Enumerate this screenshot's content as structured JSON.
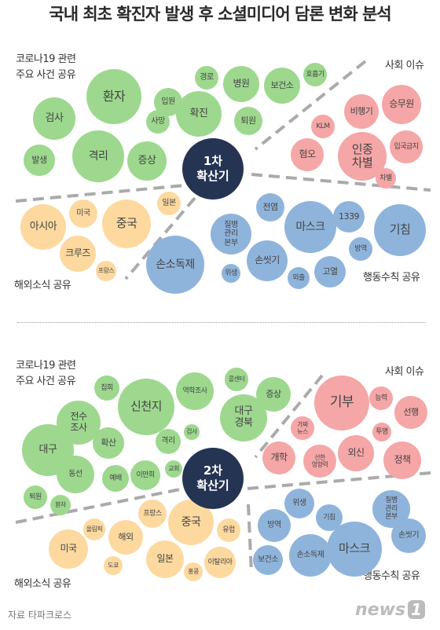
{
  "title": "국내 최초 확진자 발생 후 소셜미디어 담론 변화 분석",
  "panel1": {
    "center": "1차\n확산기",
    "labels": {
      "top_left": "코로나19 관련\n주요 사건 공유",
      "top_right": "사회 이슈",
      "bottom_left": "해외소식 공유",
      "bottom_right": "행동수칙 공유"
    },
    "green": [
      "환자",
      "검사",
      "격리",
      "발생",
      "증상",
      "확진",
      "병원",
      "입원",
      "경로",
      "사망",
      "보건소",
      "호흡기",
      "퇴원"
    ],
    "pink": [
      "승무원",
      "비행기",
      "KLM",
      "혐오",
      "인종\n차별",
      "입국금지",
      "차별"
    ],
    "yellow": [
      "아시아",
      "미국",
      "중국",
      "크루즈",
      "프랑스",
      "일본"
    ],
    "blue": [
      "손소독제",
      "질병\n관리\n본부",
      "위생",
      "전염",
      "손씻기",
      "마스크",
      "1339",
      "기침",
      "외출",
      "방역",
      "고열"
    ]
  },
  "panel2": {
    "center": "2차\n확산기",
    "labels": {
      "top_left": "코로나19 관련\n주요 사건 공유",
      "top_right": "사회 이슈",
      "bottom_left": "해외소식 공유",
      "bottom_right": "행동수칙 공유"
    },
    "green": [
      "신천지",
      "집회",
      "역학조사",
      "콜센터",
      "증상",
      "대구\n경북",
      "전수\n조사",
      "대구",
      "확산",
      "격리",
      "검사",
      "동선",
      "예배",
      "이만희",
      "교회",
      "퇴원",
      "환자"
    ],
    "pink": [
      "기부",
      "능력",
      "선행",
      "가짜\n뉴스",
      "투명",
      "개학",
      "선한\n영향력",
      "외신",
      "정책"
    ],
    "yellow": [
      "올림픽",
      "프랑스",
      "미국",
      "해외",
      "중국",
      "유럽",
      "일본",
      "이탈리아",
      "도쿄",
      "홍콩"
    ],
    "blue": [
      "위생",
      "질병\n관리\n본부",
      "기침",
      "방역",
      "마스크",
      "손씻기",
      "보건소",
      "손소독제"
    ]
  },
  "source": "자료 타파크로스",
  "logo": "news",
  "logo_badge": "1"
}
